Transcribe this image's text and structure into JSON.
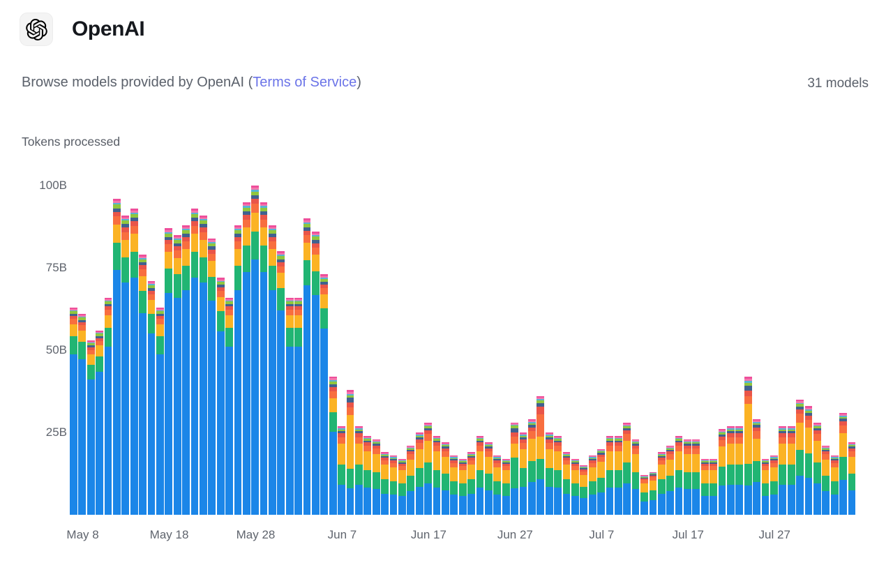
{
  "page": {
    "provider_name": "OpenAI",
    "subtitle_prefix": "Browse models provided by OpenAI (",
    "tos_link": "Terms of Service",
    "subtitle_suffix": ")",
    "models_count": "31 models"
  },
  "chart_data": {
    "type": "bar",
    "stacked": true,
    "title": "Tokens processed",
    "unit": "B tokens",
    "ylim": [
      0,
      100
    ],
    "grid": false,
    "legend": "none",
    "yticks": [
      {
        "label": "100B",
        "value": 100
      },
      {
        "label": "75B",
        "value": 75
      },
      {
        "label": "50B",
        "value": 50
      },
      {
        "label": "25B",
        "value": 25
      }
    ],
    "xticks": [
      "May 8",
      "May 18",
      "May 28",
      "Jun 7",
      "Jun 17",
      "Jun 27",
      "Jul 7",
      "Jul 17",
      "Jul 27"
    ],
    "series_order": [
      "blue",
      "green",
      "amber",
      "orange",
      "red",
      "slate",
      "lime",
      "cyan",
      "pink",
      "magenta"
    ],
    "series_colors": {
      "blue": "#1b86e8",
      "green": "#21b573",
      "amber": "#fbb324",
      "orange": "#f86e3f",
      "red": "#e95549",
      "slate": "#40618f",
      "lime": "#91c63d",
      "cyan": "#56b5d4",
      "pink": "#f478ad",
      "magenta": "#ee4f9b"
    },
    "profiles": {
      "high": {
        "blue": 0.775,
        "green": 0.085,
        "amber": 0.058,
        "orange": 0.026,
        "red": 0.015,
        "slate": 0.011,
        "lime": 0.012,
        "cyan": 0.005,
        "pink": 0.006,
        "magenta": 0.007
      },
      "trans": {
        "blue": 0.6,
        "green": 0.14,
        "amber": 0.1,
        "orange": 0.055,
        "red": 0.03,
        "slate": 0.02,
        "lime": 0.02,
        "cyan": 0.01,
        "pink": 0.012,
        "magenta": 0.013
      },
      "low": {
        "blue": 0.34,
        "green": 0.225,
        "amber": 0.235,
        "orange": 0.075,
        "red": 0.04,
        "slate": 0.025,
        "lime": 0.02,
        "cyan": 0.012,
        "pink": 0.013,
        "magenta": 0.015
      },
      "amberspike": {
        "blue": 0.21,
        "green": 0.16,
        "amber": 0.43,
        "orange": 0.06,
        "red": 0.04,
        "slate": 0.035,
        "lime": 0.02,
        "cyan": 0.012,
        "pink": 0.015,
        "magenta": 0.018
      },
      "orangespike": {
        "blue": 0.3,
        "green": 0.17,
        "amber": 0.19,
        "orange": 0.19,
        "red": 0.06,
        "slate": 0.03,
        "lime": 0.025,
        "cyan": 0.01,
        "pink": 0.012,
        "magenta": 0.013
      },
      "greenday": {
        "blue": 0.29,
        "green": 0.33,
        "amber": 0.15,
        "orange": 0.08,
        "red": 0.045,
        "slate": 0.04,
        "lime": 0.035,
        "cyan": 0.008,
        "pink": 0.01,
        "magenta": 0.012
      }
    },
    "days": [
      [
        "May 7",
        63,
        "high"
      ],
      [
        "May 8",
        61,
        "high"
      ],
      [
        "May 9",
        53,
        "high"
      ],
      [
        "May 10",
        56,
        "high"
      ],
      [
        "May 11",
        66,
        "high"
      ],
      [
        "May 12",
        96,
        "high"
      ],
      [
        "May 13",
        91,
        "high"
      ],
      [
        "May 14",
        93,
        "high"
      ],
      [
        "May 15",
        79,
        "high"
      ],
      [
        "May 16",
        71,
        "high"
      ],
      [
        "May 17",
        63,
        "high"
      ],
      [
        "May 18",
        87,
        "high"
      ],
      [
        "May 19",
        85,
        "high"
      ],
      [
        "May 20",
        88,
        "high"
      ],
      [
        "May 21",
        93,
        "high"
      ],
      [
        "May 22",
        91,
        "high"
      ],
      [
        "May 23",
        84,
        "high"
      ],
      [
        "May 24",
        72,
        "high"
      ],
      [
        "May 25",
        66,
        "high"
      ],
      [
        "May 26",
        88,
        "high"
      ],
      [
        "May 27",
        95,
        "high"
      ],
      [
        "May 28",
        100,
        "high"
      ],
      [
        "May 29",
        95,
        "high"
      ],
      [
        "May 30",
        88,
        "high"
      ],
      [
        "May 31",
        80,
        "high"
      ],
      [
        "Jun 1",
        66,
        "high"
      ],
      [
        "Jun 2",
        66,
        "high"
      ],
      [
        "Jun 3",
        90,
        "high"
      ],
      [
        "Jun 4",
        86,
        "high"
      ],
      [
        "Jun 5",
        73,
        "high"
      ],
      [
        "Jun 6",
        42,
        "trans"
      ],
      [
        "Jun 7",
        27,
        "low"
      ],
      [
        "Jun 8",
        38,
        "amberspike"
      ],
      [
        "Jun 9",
        27,
        "low"
      ],
      [
        "Jun 10",
        24,
        "low"
      ],
      [
        "Jun 11",
        23,
        "low"
      ],
      [
        "Jun 12",
        19,
        "low"
      ],
      [
        "Jun 13",
        18,
        "low"
      ],
      [
        "Jun 14",
        17,
        "low"
      ],
      [
        "Jun 15",
        21,
        "low"
      ],
      [
        "Jun 16",
        25,
        "low"
      ],
      [
        "Jun 17",
        28,
        "low"
      ],
      [
        "Jun 18",
        24,
        "low"
      ],
      [
        "Jun 19",
        22,
        "low"
      ],
      [
        "Jun 20",
        18,
        "low"
      ],
      [
        "Jun 21",
        17,
        "low"
      ],
      [
        "Jun 22",
        19,
        "low"
      ],
      [
        "Jun 23",
        24,
        "low"
      ],
      [
        "Jun 24",
        22,
        "low"
      ],
      [
        "Jun 25",
        18,
        "low"
      ],
      [
        "Jun 26",
        17,
        "low"
      ],
      [
        "Jun 27",
        28,
        "greenday"
      ],
      [
        "Jun 28",
        25,
        "low"
      ],
      [
        "Jun 29",
        29,
        "low"
      ],
      [
        "Jun 30",
        36,
        "orangespike"
      ],
      [
        "Jul 1",
        25,
        "low"
      ],
      [
        "Jul 2",
        24,
        "low"
      ],
      [
        "Jul 3",
        19,
        "low"
      ],
      [
        "Jul 4",
        17,
        "low"
      ],
      [
        "Jul 5",
        15,
        "low"
      ],
      [
        "Jul 6",
        18,
        "low"
      ],
      [
        "Jul 7",
        20,
        "low"
      ],
      [
        "Jul 8",
        24,
        "low"
      ],
      [
        "Jul 9",
        24,
        "low"
      ],
      [
        "Jul 10",
        28,
        "low"
      ],
      [
        "Jul 11",
        23,
        "low"
      ],
      [
        "Jul 12",
        12,
        "low"
      ],
      [
        "Jul 13",
        13,
        "low"
      ],
      [
        "Jul 14",
        19,
        "low"
      ],
      [
        "Jul 15",
        21,
        "low"
      ],
      [
        "Jul 16",
        24,
        "low"
      ],
      [
        "Jul 17",
        23,
        "low"
      ],
      [
        "Jul 18",
        23,
        "low"
      ],
      [
        "Jul 19",
        17,
        "low"
      ],
      [
        "Jul 20",
        17,
        "low"
      ],
      [
        "Jul 21",
        26,
        "low"
      ],
      [
        "Jul 22",
        27,
        "low"
      ],
      [
        "Jul 23",
        27,
        "low"
      ],
      [
        "Jul 24",
        42,
        "amberspike"
      ],
      [
        "Jul 25",
        29,
        "low"
      ],
      [
        "Jul 26",
        17,
        "low"
      ],
      [
        "Jul 27",
        18,
        "low"
      ],
      [
        "Jul 28",
        27,
        "low"
      ],
      [
        "Jul 29",
        27,
        "low"
      ],
      [
        "Jul 30",
        35,
        "low"
      ],
      [
        "Jul 31",
        33,
        "low"
      ],
      [
        "Aug 1",
        28,
        "low"
      ],
      [
        "Aug 2",
        21,
        "low"
      ],
      [
        "Aug 3",
        18,
        "low"
      ],
      [
        "Aug 4",
        31,
        "low"
      ],
      [
        "Aug 5",
        22,
        "low"
      ]
    ]
  }
}
